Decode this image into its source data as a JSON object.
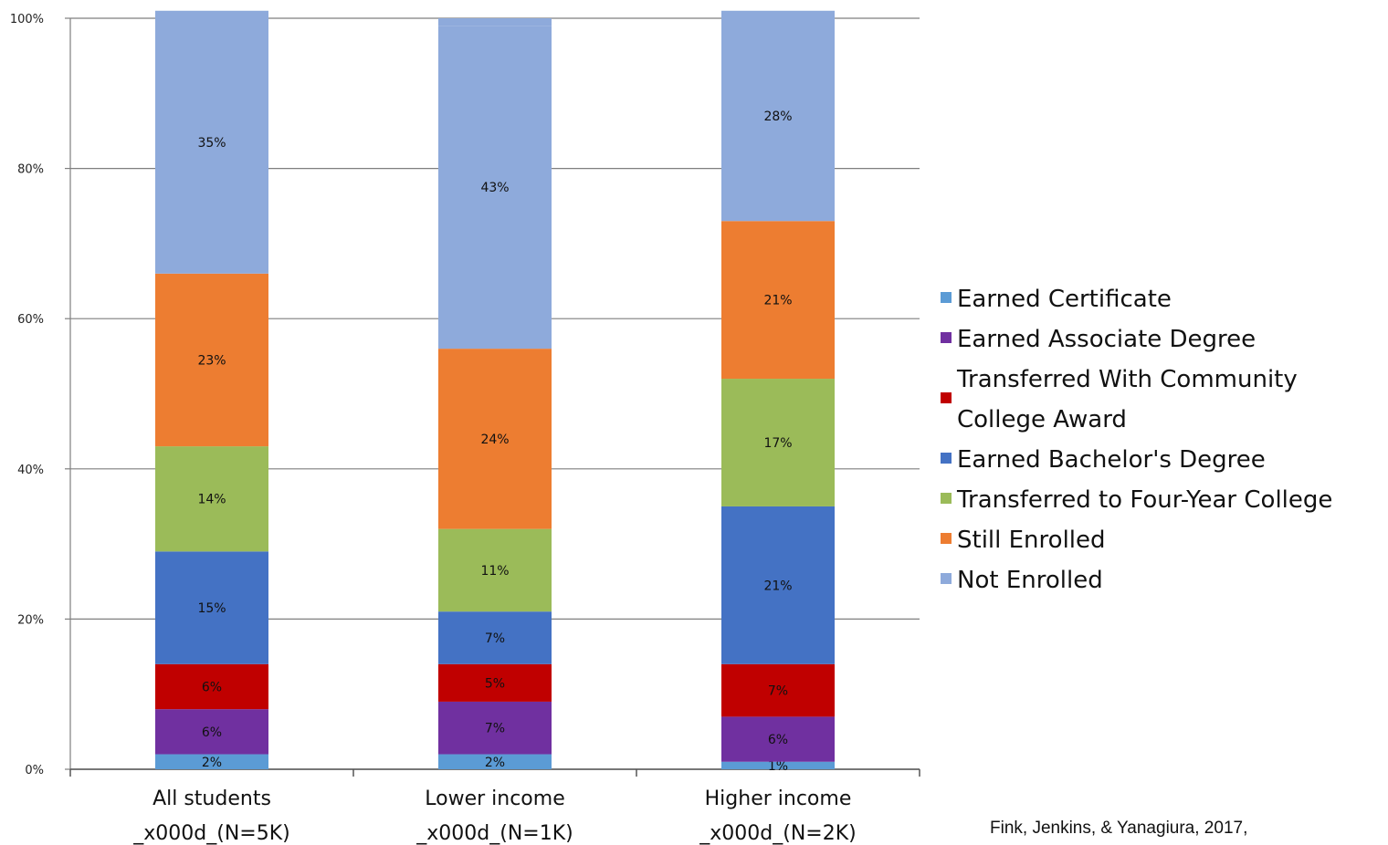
{
  "chart_data": {
    "type": "bar",
    "stacked": true,
    "categories": [
      [
        "All students",
        "_x000d_(N=5K)"
      ],
      [
        "Lower income",
        "_x000d_(N=1K)"
      ],
      [
        "Higher income",
        "_x000d_(N=2K)"
      ]
    ],
    "series": [
      {
        "name": "Earned Certificate",
        "color": "#5b9bd5",
        "values": [
          2,
          2,
          1
        ],
        "labels": [
          "2%",
          "2%",
          "1%"
        ]
      },
      {
        "name": "Earned Associate Degree",
        "color": "#7030a0",
        "values": [
          6,
          7,
          6
        ],
        "labels": [
          "6%",
          "7%",
          "6%"
        ]
      },
      {
        "name": "Transferred With Community College Award",
        "color": "#c00000",
        "values": [
          6,
          5,
          7
        ],
        "labels": [
          "6%",
          "5%",
          "7%"
        ]
      },
      {
        "name": "Earned Bachelor's Degree",
        "color": "#4472c4",
        "values": [
          15,
          7,
          21
        ],
        "labels": [
          "15%",
          "7%",
          "21%"
        ]
      },
      {
        "name": "Transferred to Four-Year College",
        "color": "#9bbb59",
        "values": [
          14,
          11,
          17
        ],
        "labels": [
          "14%",
          "11%",
          "17%"
        ]
      },
      {
        "name": "Still Enrolled",
        "color": "#ed7d31",
        "values": [
          23,
          24,
          21
        ],
        "labels": [
          "23%",
          "24%",
          "21%"
        ]
      },
      {
        "name": "Not Enrolled",
        "color": "#8eaadb",
        "values": [
          35,
          43,
          28
        ],
        "labels": [
          "35%",
          "43%",
          "28%"
        ]
      }
    ],
    "legend": [
      {
        "lines": [
          "Earned Certificate"
        ],
        "color": "#5b9bd5"
      },
      {
        "lines": [
          "Earned Associate Degree"
        ],
        "color": "#7030a0"
      },
      {
        "lines": [
          "Transferred With Community",
          "College Award"
        ],
        "color": "#c00000"
      },
      {
        "lines": [
          "Earned Bachelor's Degree"
        ],
        "color": "#4472c4"
      },
      {
        "lines": [
          "Transferred to Four-Year College"
        ],
        "color": "#9bbb59"
      },
      {
        "lines": [
          "Still Enrolled"
        ],
        "color": "#ed7d31"
      },
      {
        "lines": [
          "Not Enrolled"
        ],
        "color": "#8eaadb"
      }
    ],
    "yticks": [
      "0%",
      "20%",
      "40%",
      "60%",
      "80%",
      "100%"
    ],
    "ylim": [
      0,
      100
    ],
    "grid": true,
    "legend_position": "right"
  },
  "source_note": "Fink, Jenkins, & Yanagiura, 2017,"
}
